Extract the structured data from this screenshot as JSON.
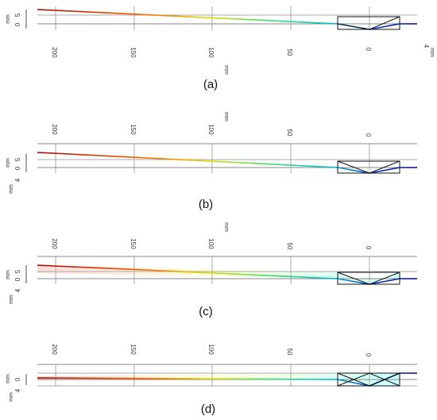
{
  "colors": {
    "axis": "#888888",
    "grid": "#aaaaaa",
    "lens": "#111111",
    "ray_gradient": [
      "#aa0000",
      "#ff5500",
      "#dddd00",
      "#55dd55",
      "#00cccc",
      "#0000aa"
    ],
    "beam_fill": [
      "#ffcccc",
      "#ccffff"
    ]
  },
  "x_tick_labels": [
    "200",
    "150",
    "100",
    "50",
    "0"
  ],
  "x_unit": "mm",
  "y_unit": "mm",
  "panels": [
    {
      "caption": "(a)",
      "y_tick_labels": [
        "5",
        "0"
      ],
      "edge_label": "4",
      "edge_unit": "mm",
      "beam_filled": false
    },
    {
      "caption": "(b)",
      "y_tick_labels": [
        "5",
        "0"
      ],
      "edge_label": "4",
      "beam_filled": false
    },
    {
      "caption": "(c)",
      "y_tick_labels": [
        "5",
        "0"
      ],
      "edge_label": "4",
      "beam_filled": true
    },
    {
      "caption": "(d)",
      "y_tick_labels": [
        "0"
      ],
      "edge_label": "4",
      "beam_filled": true
    }
  ]
}
